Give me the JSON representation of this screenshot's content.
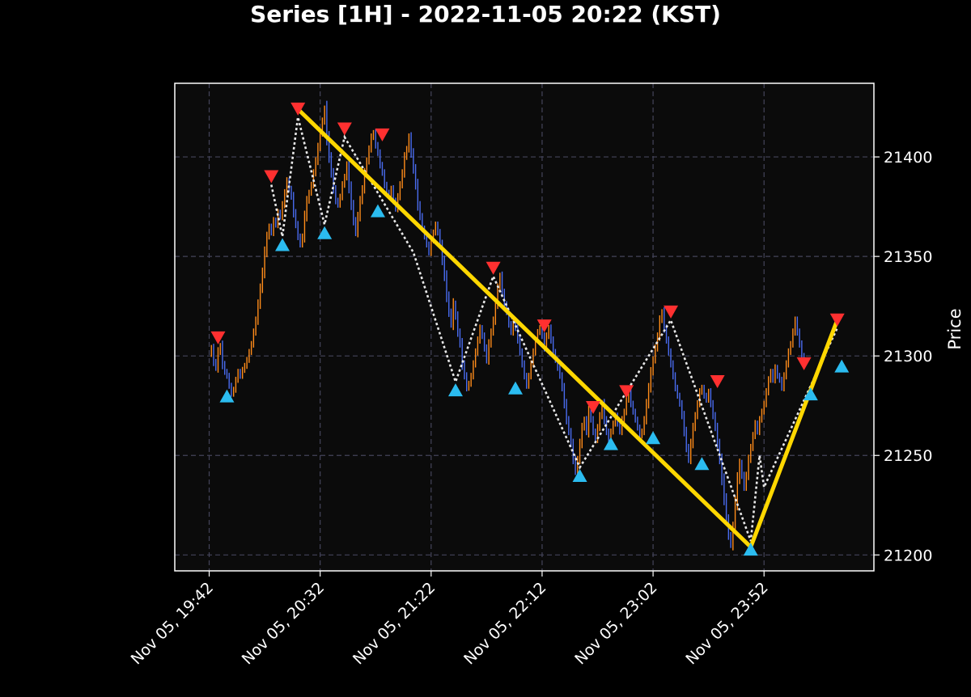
{
  "chart_data": {
    "type": "line",
    "title": "Series [1H] - 2022-11-05 20:22 (KST)",
    "xlabel": "",
    "ylabel": "Price",
    "x_ticks": [
      "Nov 05, 19:42",
      "Nov 05, 20:32",
      "Nov 05, 21:22",
      "Nov 05, 22:12",
      "Nov 05, 23:02",
      "Nov 05, 23:52"
    ],
    "x_tick_minutes": [
      0,
      50,
      100,
      150,
      200,
      250
    ],
    "xlim_minutes": [
      -15.5,
      299.5
    ],
    "y_ticks": [
      21200,
      21250,
      21300,
      21350,
      21400
    ],
    "ylim": [
      21192,
      21437
    ],
    "grid": true,
    "colors": {
      "background": "#000000",
      "plot_background": "#0b0b0b",
      "up": "#ff8c1a",
      "down": "#4a6cf0",
      "peak_marker": "#ff3030",
      "trough_marker": "#2bbcf0",
      "zigzag": "#e8e8e8",
      "trend": "#ffd700",
      "grid": "#44445a"
    },
    "price_series": {
      "start_minute": 0,
      "step_minutes": 1,
      "close": [
        21301,
        21304,
        21297,
        21294,
        21302,
        21305,
        21296,
        21292,
        21290,
        21285,
        21281,
        21283,
        21288,
        21292,
        21290,
        21293,
        21295,
        21298,
        21302,
        21306,
        21312,
        21318,
        21326,
        21334,
        21342,
        21352,
        21360,
        21365,
        21362,
        21368,
        21366,
        21372,
        21370,
        21376,
        21382,
        21388,
        21384,
        21380,
        21372,
        21366,
        21360,
        21356,
        21360,
        21370,
        21378,
        21382,
        21386,
        21392,
        21398,
        21405,
        21412,
        21418,
        21424,
        21410,
        21400,
        21392,
        21384,
        21378,
        21376,
        21380,
        21386,
        21390,
        21396,
        21385,
        21376,
        21368,
        21362,
        21370,
        21378,
        21384,
        21392,
        21398,
        21404,
        21410,
        21412,
        21406,
        21402,
        21396,
        21392,
        21386,
        21382,
        21380,
        21384,
        21378,
        21374,
        21380,
        21386,
        21392,
        21400,
        21404,
        21410,
        21402,
        21394,
        21386,
        21376,
        21370,
        21364,
        21360,
        21356,
        21352,
        21358,
        21362,
        21366,
        21362,
        21356,
        21348,
        21340,
        21330,
        21322,
        21316,
        21326,
        21320,
        21312,
        21306,
        21296,
        21290,
        21284,
        21286,
        21290,
        21296,
        21302,
        21308,
        21314,
        21310,
        21304,
        21298,
        21306,
        21312,
        21318,
        21326,
        21334,
        21340,
        21332,
        21326,
        21322,
        21316,
        21312,
        21318,
        21314,
        21308,
        21302,
        21296,
        21290,
        21285,
        21290,
        21296,
        21302,
        21308,
        21312,
        21314,
        21310,
        21304,
        21310,
        21314,
        21308,
        21302,
        21298,
        21294,
        21290,
        21284,
        21276,
        21268,
        21262,
        21256,
        21248,
        21242,
        21248,
        21256,
        21264,
        21268,
        21262,
        21272,
        21268,
        21262,
        21258,
        21264,
        21270,
        21276,
        21268,
        21262,
        21258,
        21262,
        21266,
        21270,
        21266,
        21262,
        21268,
        21272,
        21278,
        21282,
        21276,
        21272,
        21268,
        21264,
        21260,
        21262,
        21268,
        21276,
        21284,
        21292,
        21298,
        21304,
        21310,
        21318,
        21322,
        21314,
        21308,
        21302,
        21296,
        21290,
        21284,
        21280,
        21276,
        21270,
        21262,
        21254,
        21248,
        21256,
        21264,
        21270,
        21276,
        21282,
        21284,
        21280,
        21278,
        21282,
        21276,
        21270,
        21264,
        21256,
        21248,
        21238,
        21228,
        21218,
        21210,
        21205,
        21214,
        21226,
        21238,
        21246,
        21240,
        21234,
        21240,
        21248,
        21254,
        21260,
        21266,
        21262,
        21268,
        21272,
        21276,
        21282,
        21288,
        21292,
        21288,
        21294,
        21290,
        21288,
        21284,
        21290,
        21296,
        21302,
        21306,
        21312,
        21318,
        21312,
        21306,
        21300,
        21298
      ]
    },
    "peaks": [
      {
        "t": 4,
        "price": 21305
      },
      {
        "t": 28,
        "price": 21386
      },
      {
        "t": 40,
        "price": 21420
      },
      {
        "t": 61,
        "price": 21410
      },
      {
        "t": 78,
        "price": 21407
      },
      {
        "t": 128,
        "price": 21340
      },
      {
        "t": 151,
        "price": 21311
      },
      {
        "t": 173,
        "price": 21270
      },
      {
        "t": 188,
        "price": 21278
      },
      {
        "t": 208,
        "price": 21318
      },
      {
        "t": 229,
        "price": 21283
      },
      {
        "t": 268,
        "price": 21292
      },
      {
        "t": 283,
        "price": 21314
      }
    ],
    "troughs": [
      {
        "t": 8,
        "price": 21284
      },
      {
        "t": 33,
        "price": 21360
      },
      {
        "t": 52,
        "price": 21366
      },
      {
        "t": 76,
        "price": 21377
      },
      {
        "t": 111,
        "price": 21287
      },
      {
        "t": 138,
        "price": 21288
      },
      {
        "t": 167,
        "price": 21244
      },
      {
        "t": 181,
        "price": 21260
      },
      {
        "t": 200,
        "price": 21263
      },
      {
        "t": 222,
        "price": 21250
      },
      {
        "t": 244,
        "price": 21207
      },
      {
        "t": 271,
        "price": 21285
      },
      {
        "t": 285,
        "price": 21299
      }
    ],
    "zigzag_points": [
      {
        "t": 28,
        "price": 21386
      },
      {
        "t": 33,
        "price": 21360
      },
      {
        "t": 40,
        "price": 21420
      },
      {
        "t": 52,
        "price": 21366
      },
      {
        "t": 61,
        "price": 21410
      },
      {
        "t": 92,
        "price": 21352
      },
      {
        "t": 111,
        "price": 21287
      },
      {
        "t": 128,
        "price": 21340
      },
      {
        "t": 167,
        "price": 21244
      },
      {
        "t": 208,
        "price": 21318
      },
      {
        "t": 244,
        "price": 21207
      },
      {
        "t": 248,
        "price": 21250
      },
      {
        "t": 250,
        "price": 21234
      },
      {
        "t": 283,
        "price": 21314
      }
    ],
    "trend_lines": [
      {
        "from": {
          "t": 40,
          "price": 21424
        },
        "to": {
          "t": 244,
          "price": 21204
        }
      },
      {
        "from": {
          "t": 244,
          "price": 21204
        },
        "to": {
          "t": 283,
          "price": 21318
        }
      }
    ]
  }
}
